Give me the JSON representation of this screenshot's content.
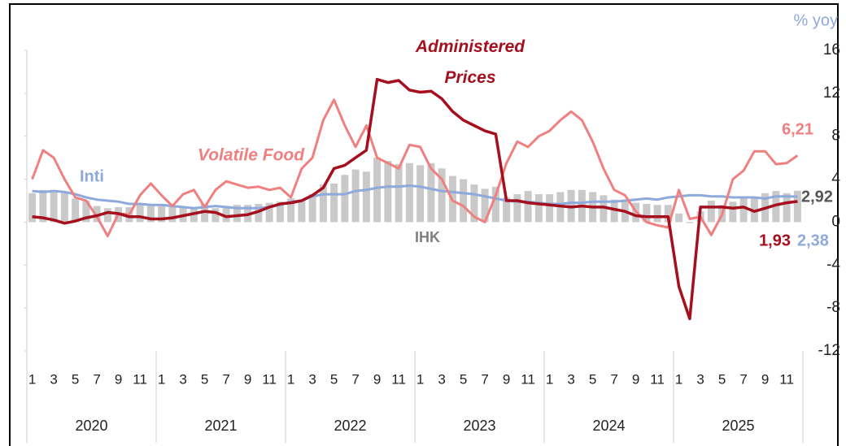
{
  "chart_data": {
    "type": "bar_line",
    "y_label": "% yoy",
    "categories": [
      "1",
      null,
      "3",
      null,
      "5",
      null,
      "7",
      null,
      "9",
      null,
      "11",
      null,
      "1",
      null,
      "3",
      null,
      "5",
      null,
      "7",
      null,
      "9",
      null,
      "11",
      null,
      "1",
      null,
      "3",
      null,
      "5",
      null,
      "7",
      null,
      "9",
      null,
      "11",
      null,
      "1",
      null,
      "3",
      null,
      "5",
      null,
      "7",
      null,
      "9",
      null,
      "11",
      null,
      "1",
      null,
      "3",
      null,
      "5",
      null,
      "7",
      null,
      "9",
      null,
      "11",
      null,
      "1",
      null,
      "3",
      null,
      "5",
      null,
      "7",
      null,
      "9",
      null,
      "11",
      null
    ],
    "years": [
      "2020",
      "2021",
      "2022",
      "2023",
      "2024",
      "2025"
    ],
    "ylim": [
      -12,
      16
    ],
    "yticks": [
      -12,
      -8,
      -4,
      0,
      4,
      8,
      12,
      16
    ],
    "series": [
      {
        "name": "IHK",
        "kind": "bar",
        "color": "#c9c9c9",
        "values": [
          2.7,
          3.0,
          3.0,
          2.7,
          2.2,
          2.0,
          1.5,
          1.3,
          1.4,
          1.4,
          1.6,
          1.7,
          1.6,
          1.4,
          1.4,
          1.4,
          1.7,
          1.3,
          1.5,
          1.6,
          1.6,
          1.7,
          1.8,
          1.9,
          2.2,
          2.1,
          2.6,
          3.5,
          3.6,
          4.4,
          4.9,
          4.7,
          6.0,
          5.7,
          5.4,
          5.5,
          5.3,
          5.5,
          5.0,
          4.3,
          4.0,
          3.5,
          3.1,
          3.3,
          2.3,
          2.6,
          2.9,
          2.6,
          2.6,
          2.8,
          3.0,
          3.0,
          2.8,
          2.5,
          2.1,
          2.1,
          1.8,
          1.7,
          1.6,
          1.6,
          0.8,
          -0.1,
          1.0,
          2.0,
          1.6,
          1.9,
          2.4,
          2.3,
          2.7,
          2.9,
          2.7,
          2.92
        ],
        "value_labels": [
          null,
          null,
          null,
          null,
          null,
          null,
          null,
          null,
          null,
          null,
          null,
          null,
          null,
          null,
          null,
          null,
          null,
          null,
          null,
          null,
          null,
          null,
          null,
          null,
          null,
          null,
          null,
          null,
          null,
          null,
          null,
          null,
          null,
          null,
          null,
          null,
          null,
          null,
          null,
          null,
          null,
          null,
          null,
          null,
          null,
          null,
          null,
          null,
          null,
          null,
          null,
          null,
          null,
          null,
          null,
          null,
          null,
          null,
          null,
          null,
          null,
          null,
          null,
          null,
          null,
          null,
          null,
          null,
          null,
          null,
          null,
          "2,92"
        ]
      },
      {
        "name": "Inti",
        "kind": "line",
        "color": "#8ea9db",
        "values": [
          2.9,
          2.8,
          2.9,
          2.8,
          2.6,
          2.3,
          2.1,
          2.0,
          1.9,
          1.7,
          1.7,
          1.6,
          1.6,
          1.5,
          1.4,
          1.3,
          1.4,
          1.5,
          1.4,
          1.3,
          1.3,
          1.3,
          1.4,
          1.6,
          1.9,
          2.0,
          2.4,
          2.6,
          2.6,
          2.6,
          2.9,
          3.0,
          3.2,
          3.3,
          3.3,
          3.4,
          3.3,
          3.1,
          2.9,
          2.8,
          2.7,
          2.6,
          2.4,
          2.2,
          2.0,
          1.9,
          1.9,
          1.8,
          1.7,
          1.7,
          1.8,
          1.8,
          1.9,
          1.9,
          1.9,
          2.0,
          2.1,
          2.2,
          2.1,
          2.3,
          2.4,
          2.5,
          2.5,
          2.4,
          2.4,
          2.3,
          2.3,
          2.3,
          2.2,
          2.4,
          2.4,
          2.38
        ],
        "value_labels": [
          null,
          null,
          null,
          null,
          null,
          null,
          null,
          null,
          null,
          null,
          null,
          null,
          null,
          null,
          null,
          null,
          null,
          null,
          null,
          null,
          null,
          null,
          null,
          null,
          null,
          null,
          null,
          null,
          null,
          null,
          null,
          null,
          null,
          null,
          null,
          null,
          null,
          null,
          null,
          null,
          null,
          null,
          null,
          null,
          null,
          null,
          null,
          null,
          null,
          null,
          null,
          null,
          null,
          null,
          null,
          null,
          null,
          null,
          null,
          null,
          null,
          null,
          null,
          null,
          null,
          null,
          null,
          null,
          null,
          null,
          null,
          "2,38"
        ]
      },
      {
        "name": "Volatile Food",
        "kind": "line",
        "color": "#f08080",
        "values": [
          4.0,
          6.7,
          6.0,
          4.0,
          2.3,
          2.0,
          0.5,
          -1.3,
          0.8,
          0.7,
          2.5,
          3.6,
          2.5,
          1.5,
          2.6,
          3.0,
          1.4,
          3.0,
          3.8,
          3.5,
          3.2,
          3.3,
          3.0,
          3.2,
          2.3,
          5.0,
          6.0,
          9.5,
          11.4,
          9.0,
          7.0,
          9.0,
          6.0,
          5.5,
          5.0,
          7.2,
          7.0,
          5.0,
          4.0,
          2.0,
          1.5,
          0.5,
          0.0,
          2.5,
          5.5,
          7.5,
          7.0,
          8.0,
          8.5,
          9.5,
          10.3,
          9.5,
          7.5,
          5.0,
          3.0,
          2.5,
          1.0,
          0.0,
          -0.3,
          -0.5,
          3.0,
          0.3,
          0.5,
          -1.2,
          0.7,
          4.0,
          4.8,
          6.6,
          6.6,
          5.4,
          5.5,
          6.21
        ],
        "value_labels": [
          null,
          null,
          null,
          null,
          null,
          null,
          null,
          null,
          null,
          null,
          null,
          null,
          null,
          null,
          null,
          null,
          null,
          null,
          null,
          null,
          null,
          null,
          null,
          null,
          null,
          null,
          null,
          null,
          null,
          null,
          null,
          null,
          null,
          null,
          null,
          null,
          null,
          null,
          null,
          null,
          null,
          null,
          null,
          null,
          null,
          null,
          null,
          null,
          null,
          null,
          null,
          null,
          null,
          null,
          null,
          null,
          null,
          null,
          null,
          null,
          null,
          null,
          null,
          null,
          null,
          null,
          null,
          null,
          null,
          null,
          null,
          "6,21"
        ]
      },
      {
        "name": "Administered Prices",
        "kind": "line",
        "color": "#a50f1e",
        "values": [
          0.5,
          0.4,
          0.2,
          -0.1,
          0.1,
          0.4,
          0.6,
          0.9,
          0.8,
          0.5,
          0.5,
          0.3,
          0.3,
          0.4,
          0.6,
          0.8,
          1.0,
          0.9,
          0.5,
          0.6,
          0.7,
          1.0,
          1.4,
          1.7,
          1.8,
          2.0,
          2.5,
          3.2,
          5.0,
          5.3,
          6.0,
          6.7,
          13.3,
          13.0,
          13.2,
          12.3,
          12.1,
          12.2,
          11.5,
          10.3,
          9.5,
          9.0,
          8.5,
          8.2,
          2.0,
          2.0,
          1.8,
          1.7,
          1.6,
          1.5,
          1.4,
          1.5,
          1.4,
          1.4,
          1.2,
          1.0,
          0.6,
          0.5,
          0.5,
          0.5,
          -6.0,
          -9.0,
          1.4,
          1.4,
          1.4,
          1.3,
          1.4,
          1.0,
          1.3,
          1.6,
          1.8,
          1.93
        ],
        "value_labels": [
          null,
          null,
          null,
          null,
          null,
          null,
          null,
          null,
          null,
          null,
          null,
          null,
          null,
          null,
          null,
          null,
          null,
          null,
          null,
          null,
          null,
          null,
          null,
          null,
          null,
          null,
          null,
          null,
          null,
          null,
          null,
          null,
          null,
          null,
          null,
          null,
          null,
          null,
          null,
          null,
          null,
          null,
          null,
          null,
          null,
          null,
          null,
          null,
          null,
          null,
          null,
          null,
          null,
          null,
          null,
          null,
          null,
          null,
          null,
          null,
          null,
          null,
          null,
          null,
          null,
          null,
          null,
          null,
          null,
          null,
          null,
          "1,93"
        ]
      }
    ]
  }
}
